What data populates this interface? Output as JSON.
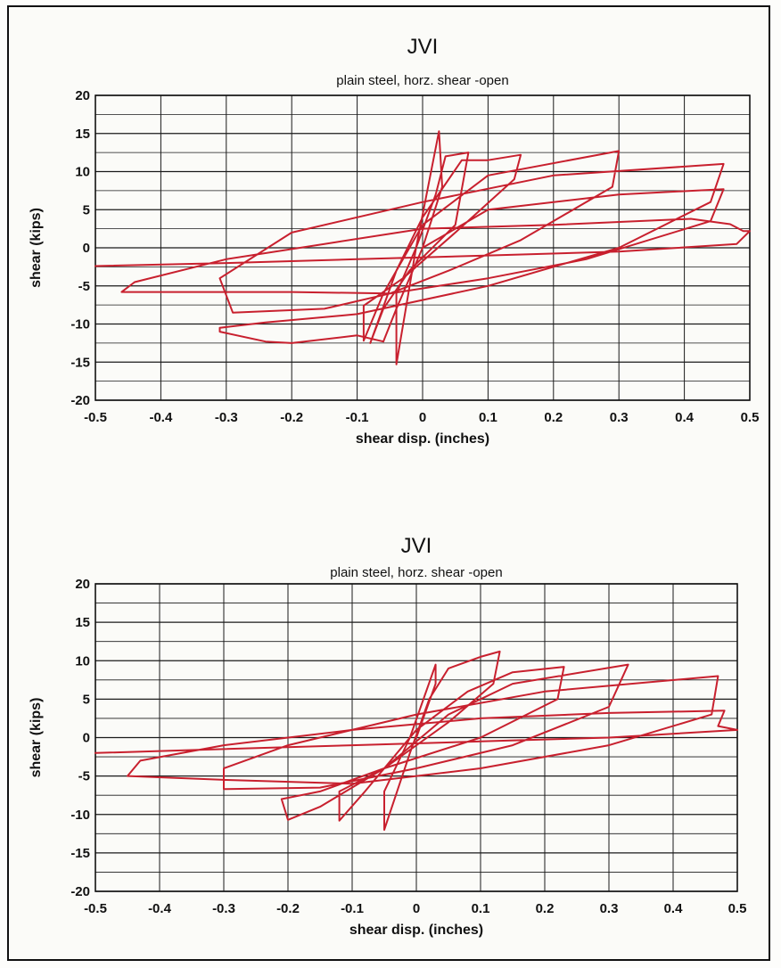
{
  "chart_data": [
    {
      "type": "line",
      "title": "JVI",
      "subtitle": "plain steel, horz. shear -open",
      "xlabel": "shear disp. (inches)",
      "ylabel": "shear (kips)",
      "xlim": [
        -0.5,
        0.5
      ],
      "ylim": [
        -20,
        20
      ],
      "xticks": [
        "-0.5",
        "-0.4",
        "-0.3",
        "-0.2",
        "-0.1",
        "0",
        "0.1",
        "0.2",
        "0.3",
        "0.4",
        "0.5"
      ],
      "yticks": [
        "20",
        "15",
        "10",
        "5",
        "0",
        "-5",
        "-10",
        "-15",
        "-20"
      ],
      "grid": true,
      "line_color": "#c8202e",
      "series": [
        {
          "values": [
            [
              0,
              0
            ],
            [
              0.03,
              8
            ],
            [
              0.025,
              15.3
            ],
            [
              -0.01,
              0
            ],
            [
              -0.04,
              -6
            ],
            [
              -0.04,
              -15.3
            ],
            [
              -0.01,
              0
            ],
            [
              0.02,
              7
            ],
            [
              0.035,
              12
            ],
            [
              0.07,
              12.5
            ],
            [
              0.05,
              3
            ],
            [
              -0.02,
              -3
            ],
            [
              -0.06,
              -8
            ],
            [
              -0.08,
              -12.5
            ],
            [
              -0.04,
              -3
            ],
            [
              0,
              4
            ],
            [
              0.06,
              11.5
            ],
            [
              0.1,
              11.5
            ],
            [
              0.15,
              12.2
            ],
            [
              0.14,
              9
            ],
            [
              0.05,
              2
            ],
            [
              -0.03,
              -4
            ],
            [
              -0.09,
              -7.6
            ],
            [
              -0.09,
              -12.2
            ],
            [
              -0.06,
              -6
            ],
            [
              0,
              3
            ],
            [
              0.1,
              9.5
            ],
            [
              0.3,
              12.7
            ],
            [
              0.29,
              8
            ],
            [
              0.15,
              1
            ],
            [
              0.04,
              -3
            ],
            [
              -0.05,
              -6
            ],
            [
              -0.15,
              -8
            ],
            [
              -0.29,
              -8.5
            ],
            [
              -0.31,
              -4
            ],
            [
              -0.2,
              2
            ],
            [
              0,
              6
            ],
            [
              0.2,
              9.5
            ],
            [
              0.46,
              11
            ],
            [
              0.44,
              6
            ],
            [
              0.3,
              0
            ],
            [
              0.1,
              -5
            ],
            [
              -0.1,
              -8.7
            ],
            [
              -0.24,
              -9.8
            ],
            [
              -0.31,
              -10.5
            ],
            [
              -0.31,
              -11
            ],
            [
              -0.24,
              -12.3
            ],
            [
              -0.2,
              -12.5
            ],
            [
              -0.1,
              -11.5
            ],
            [
              -0.06,
              -12.3
            ],
            [
              -0.04,
              -8
            ],
            [
              0,
              0
            ],
            [
              0.1,
              5
            ],
            [
              0.3,
              7
            ],
            [
              0.46,
              7.7
            ],
            [
              0.44,
              3.5
            ],
            [
              0.25,
              -1.5
            ],
            [
              0.1,
              -4
            ],
            [
              -0.05,
              -6
            ],
            [
              -0.2,
              -5.8
            ],
            [
              -0.4,
              -5.8
            ],
            [
              -0.46,
              -5.8
            ],
            [
              -0.44,
              -4.5
            ],
            [
              -0.3,
              -1.5
            ],
            [
              -0.15,
              0.5
            ],
            [
              0,
              2.5
            ],
            [
              0.2,
              3
            ],
            [
              0.41,
              3.8
            ],
            [
              0.47,
              3.1
            ],
            [
              0.49,
              2.2
            ],
            [
              0.5,
              2.2
            ],
            [
              0.48,
              0.5
            ],
            [
              0.3,
              -0.5
            ],
            [
              0.1,
              -1
            ],
            [
              -0.1,
              -1.5
            ],
            [
              -0.3,
              -2
            ],
            [
              -0.5,
              -2.4
            ]
          ]
        }
      ]
    },
    {
      "type": "line",
      "title": "JVI",
      "subtitle": "plain steel, horz. shear -open",
      "xlabel": "shear disp. (inches)",
      "ylabel": "shear (kips)",
      "xlim": [
        -0.5,
        0.5
      ],
      "ylim": [
        -20,
        20
      ],
      "xticks": [
        "-0.5",
        "-0.4",
        "-0.3",
        "-0.2",
        "-0.1",
        "0",
        "0.1",
        "0.2",
        "0.3",
        "0.4",
        "0.5"
      ],
      "yticks": [
        "20",
        "15",
        "10",
        "5",
        "0",
        "-5",
        "-10",
        "-15",
        "-20"
      ],
      "grid": true,
      "line_color": "#c8202e",
      "series": [
        {
          "values": [
            [
              0,
              0
            ],
            [
              0.03,
              7
            ],
            [
              0.03,
              9.5
            ],
            [
              -0.01,
              0
            ],
            [
              -0.05,
              -7
            ],
            [
              -0.05,
              -12
            ],
            [
              -0.01,
              -2
            ],
            [
              0.02,
              5
            ],
            [
              0.05,
              9
            ],
            [
              0.1,
              10.5
            ],
            [
              0.13,
              11.2
            ],
            [
              0.12,
              7
            ],
            [
              0.05,
              2
            ],
            [
              -0.05,
              -4
            ],
            [
              -0.12,
              -7
            ],
            [
              -0.12,
              -10.8
            ],
            [
              -0.08,
              -7
            ],
            [
              0,
              1
            ],
            [
              0.08,
              6
            ],
            [
              0.15,
              8.5
            ],
            [
              0.23,
              9.2
            ],
            [
              0.22,
              5
            ],
            [
              0.1,
              0
            ],
            [
              -0.05,
              -4
            ],
            [
              -0.15,
              -7
            ],
            [
              -0.21,
              -8
            ],
            [
              -0.2,
              -10.7
            ],
            [
              -0.15,
              -9
            ],
            [
              -0.05,
              -4
            ],
            [
              0.05,
              3
            ],
            [
              0.15,
              7
            ],
            [
              0.33,
              9.5
            ],
            [
              0.3,
              4
            ],
            [
              0.15,
              -1
            ],
            [
              0,
              -4
            ],
            [
              -0.15,
              -6.5
            ],
            [
              -0.3,
              -6.7
            ],
            [
              -0.3,
              -4
            ],
            [
              -0.2,
              -1
            ],
            [
              0,
              3
            ],
            [
              0.2,
              6
            ],
            [
              0.47,
              8
            ],
            [
              0.46,
              3
            ],
            [
              0.3,
              -1
            ],
            [
              0.1,
              -4
            ],
            [
              -0.1,
              -6
            ],
            [
              -0.3,
              -5.5
            ],
            [
              -0.45,
              -5
            ],
            [
              -0.43,
              -3
            ],
            [
              -0.3,
              -1
            ],
            [
              -0.1,
              1
            ],
            [
              0.1,
              2.5
            ],
            [
              0.3,
              3.2
            ],
            [
              0.48,
              3.5
            ],
            [
              0.47,
              1.5
            ],
            [
              0.5,
              1
            ],
            [
              0.3,
              0
            ],
            [
              0.1,
              -0.5
            ],
            [
              -0.1,
              -1
            ],
            [
              -0.3,
              -1.5
            ],
            [
              -0.5,
              -2
            ]
          ]
        }
      ]
    }
  ]
}
